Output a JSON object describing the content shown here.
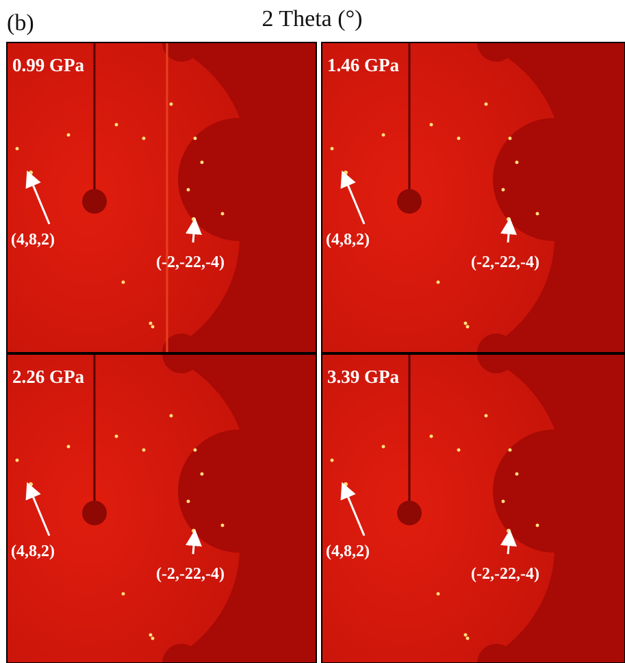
{
  "label": "(b)",
  "title": "2 Theta (°)",
  "panels": [
    {
      "pressure": "0.99 GPa",
      "annotations": [
        "(4,8,2)",
        "(-2,-22,-4)"
      ]
    },
    {
      "pressure": "1.46 GPa",
      "annotations": [
        "(4,8,2)",
        "(-2,-22,-4)"
      ]
    },
    {
      "pressure": "2.26 GPa",
      "annotations": [
        "(4,8,2)",
        "(-2,-22,-4)"
      ]
    },
    {
      "pressure": "3.39 GPa",
      "annotations": [
        "(4,8,2)",
        "(-2,-22,-4)"
      ]
    }
  ]
}
